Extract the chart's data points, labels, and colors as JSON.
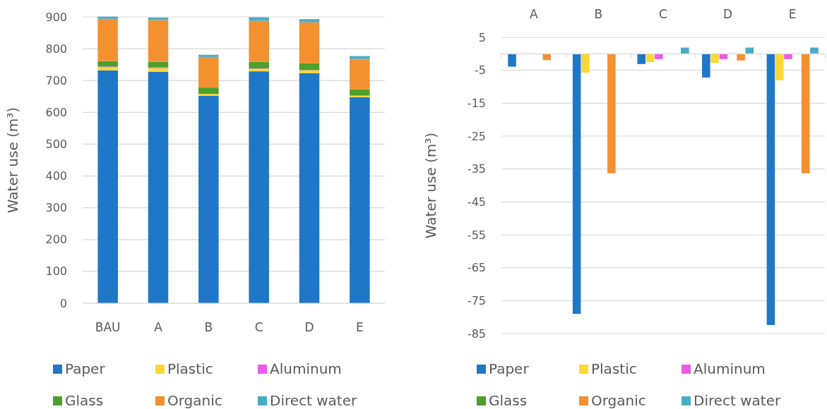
{
  "chart_data": [
    {
      "type": "bar",
      "stacked": true,
      "ylabel": "Water use (m³)",
      "categories": [
        "BAU",
        "A",
        "B",
        "C",
        "D",
        "E"
      ],
      "ylim": [
        0,
        900
      ],
      "yticks": [
        0,
        100,
        200,
        300,
        400,
        500,
        600,
        700,
        800,
        900
      ],
      "grid": "y",
      "legend": "bottom",
      "series": [
        {
          "name": "Paper",
          "color": "#1f77c8",
          "values": [
            732,
            728,
            652,
            729,
            723,
            648
          ]
        },
        {
          "name": "Plastic",
          "color": "#fdd835",
          "values": [
            10,
            11,
            6,
            8,
            9,
            4
          ]
        },
        {
          "name": "Aluminum",
          "color": "#ea5be6",
          "values": [
            2,
            2,
            null,
            1,
            1,
            1
          ]
        },
        {
          "name": "Glass",
          "color": "#4e9f2b",
          "values": [
            17,
            18,
            20,
            21,
            21,
            19
          ]
        },
        {
          "name": "Organic",
          "color": "#f39131",
          "values": [
            133,
            131,
            96,
            129,
            129,
            96
          ]
        },
        {
          "name": "Direct water",
          "color": "#4aabc6",
          "values": [
            7,
            8,
            7,
            11,
            10,
            9
          ]
        }
      ]
    },
    {
      "type": "bar",
      "ylabel": "Water use (m³)",
      "categories": [
        "A",
        "B",
        "C",
        "D",
        "E"
      ],
      "ylim": [
        -85,
        5
      ],
      "yticks": [
        5,
        -5,
        -15,
        -25,
        -35,
        -45,
        -55,
        -65,
        -75,
        -85
      ],
      "grid": "y",
      "legend": "bottom",
      "series": [
        {
          "name": "Paper",
          "color": "#1f77c8",
          "values": [
            -3.9,
            -79,
            -3.1,
            -7.2,
            -82.4
          ]
        },
        {
          "name": "Plastic",
          "color": "#fdd835",
          "values": [
            null,
            -5.7,
            -2.5,
            -2.7,
            -8
          ]
        },
        {
          "name": "Aluminum",
          "color": "#ea5be6",
          "values": [
            0,
            0,
            -1.6,
            -1.6,
            -1.6
          ]
        },
        {
          "name": "Glass",
          "color": "#4e9f2b",
          "values": [
            0,
            0,
            0,
            0,
            0
          ]
        },
        {
          "name": "Organic",
          "color": "#f39131",
          "values": [
            -1.9,
            -36.3,
            0,
            -2,
            -36.3
          ]
        },
        {
          "name": "Direct water",
          "color": "#4aabc6",
          "values": [
            0,
            0,
            1.9,
            1.9,
            1.9
          ]
        }
      ]
    }
  ]
}
